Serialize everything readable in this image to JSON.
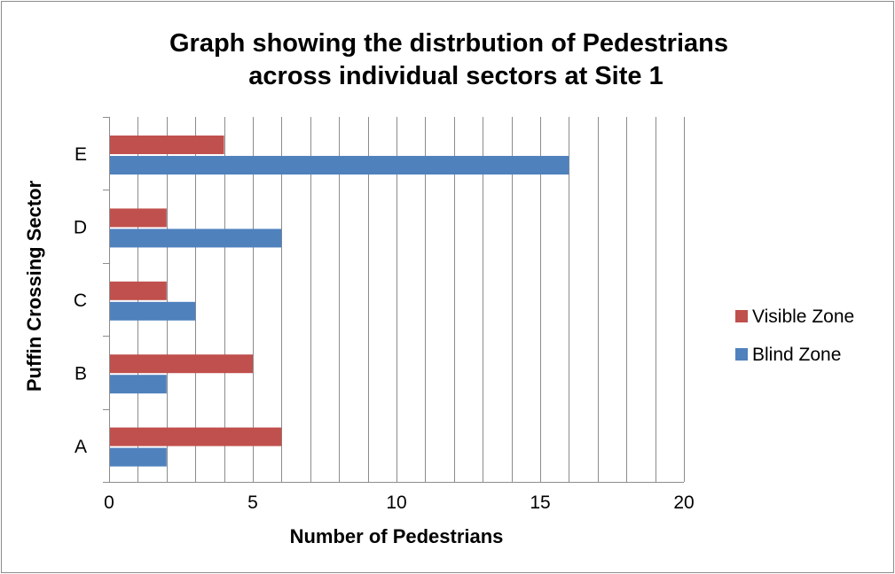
{
  "chart_data": {
    "type": "bar",
    "orientation": "horizontal",
    "title": [
      "Graph showing the distrbution of Pedestrians",
      "across individual sectors at Site 1"
    ],
    "xlabel": "Number of Pedestrians",
    "ylabel": "Puffin Crossing Sector",
    "categories": [
      "A",
      "B",
      "C",
      "D",
      "E"
    ],
    "series": [
      {
        "name": "Blind Zone",
        "color": "#4f81bd",
        "values": [
          2,
          2,
          3,
          6,
          16
        ]
      },
      {
        "name": "Visible Zone",
        "color": "#c0504d",
        "values": [
          6,
          5,
          2,
          2,
          4
        ]
      }
    ],
    "xlim": [
      0,
      20
    ],
    "xticks": [
      0,
      5,
      10,
      15,
      20
    ],
    "grid": "vertical",
    "legend": "right",
    "legend_order": [
      "Visible Zone",
      "Blind Zone"
    ]
  }
}
